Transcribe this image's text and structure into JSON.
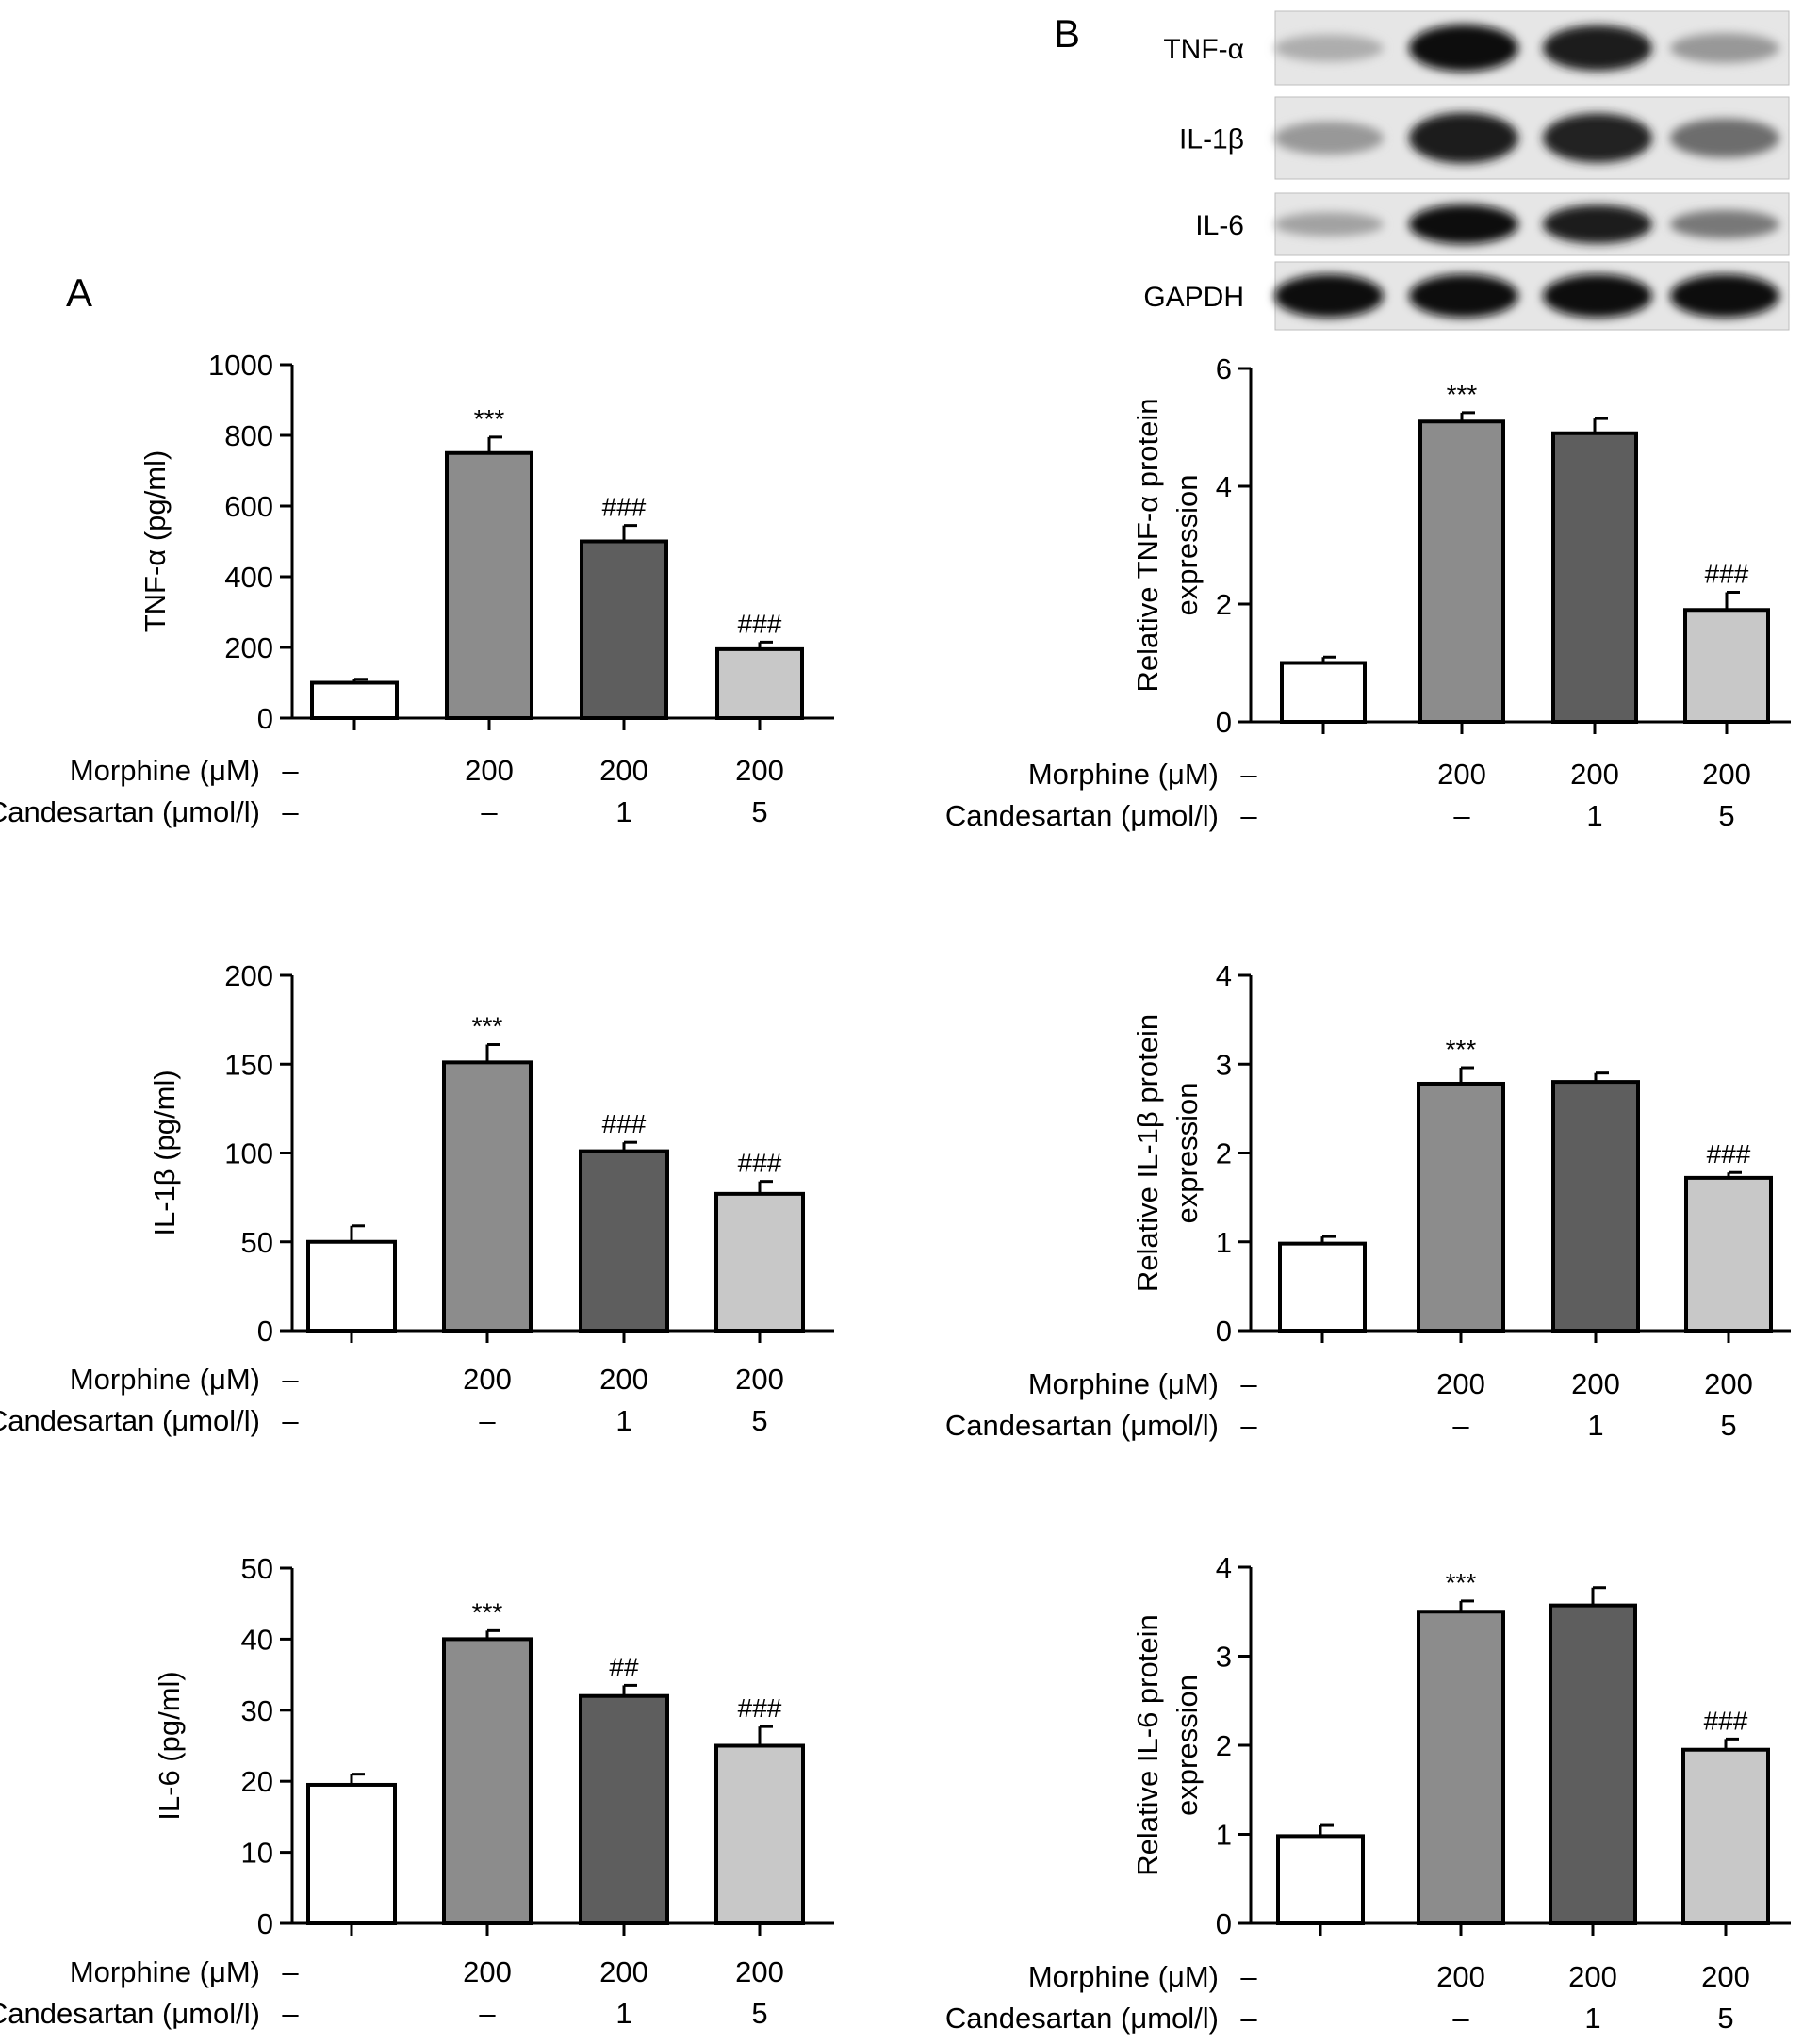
{
  "panel_labels": [
    "A",
    "B"
  ],
  "western_blot": {
    "rows": [
      "TNF-α",
      "IL-1β",
      "IL-6",
      "GAPDH"
    ],
    "lanes": 4,
    "band_darkness": [
      [
        0.25,
        1.0,
        0.95,
        0.35
      ],
      [
        0.35,
        0.95,
        0.9,
        0.55
      ],
      [
        0.3,
        1.0,
        0.95,
        0.5
      ],
      [
        1.0,
        1.0,
        1.0,
        1.0
      ]
    ]
  },
  "treatments": {
    "row1_label": "Morphine (μM)",
    "row1_values": [
      "–",
      "200",
      "200",
      "200"
    ],
    "row2_label": "Candesartan (μmol/l)",
    "row2_values": [
      "–",
      "–",
      "1",
      "5"
    ]
  },
  "colors": {
    "bar_fills": [
      "#ffffff",
      "#8c8c8c",
      "#5e5e5e",
      "#c8c8c8"
    ],
    "stroke": "#000000"
  },
  "chart_data": [
    {
      "type": "bar",
      "panel": "A",
      "ylabel": "TNF-α (pg/ml)",
      "ylim": [
        0,
        1000
      ],
      "yticks": [
        0,
        200,
        400,
        600,
        800,
        1000
      ],
      "values": [
        100,
        750,
        500,
        195
      ],
      "errors": [
        10,
        45,
        45,
        20
      ],
      "annotations": [
        "",
        "***",
        "###",
        "###"
      ]
    },
    {
      "type": "bar",
      "panel": "A",
      "ylabel": "IL-1β (pg/ml)",
      "ylim": [
        0,
        200
      ],
      "yticks": [
        0,
        50,
        100,
        150,
        200
      ],
      "values": [
        50,
        151,
        101,
        77
      ],
      "errors": [
        9,
        10,
        5,
        7
      ],
      "annotations": [
        "",
        "***",
        "###",
        "###"
      ]
    },
    {
      "type": "bar",
      "panel": "A",
      "ylabel": "IL-6 (pg/ml)",
      "ylim": [
        0,
        50
      ],
      "yticks": [
        0,
        10,
        20,
        30,
        40,
        50
      ],
      "values": [
        19.5,
        40,
        32,
        25
      ],
      "errors": [
        1.5,
        1.2,
        1.5,
        2.7
      ],
      "annotations": [
        "",
        "***",
        "##",
        "###"
      ]
    },
    {
      "type": "bar",
      "panel": "B",
      "ylabel": [
        "Relative TNF-α protein",
        "expression"
      ],
      "ylim": [
        0,
        6
      ],
      "yticks": [
        0,
        2,
        4,
        6
      ],
      "values": [
        1.0,
        5.1,
        4.9,
        1.9
      ],
      "errors": [
        0.1,
        0.15,
        0.25,
        0.3
      ],
      "annotations": [
        "",
        "***",
        "",
        "###"
      ]
    },
    {
      "type": "bar",
      "panel": "B",
      "ylabel": [
        "Relative IL-1β protein",
        "expression"
      ],
      "ylim": [
        0,
        4
      ],
      "yticks": [
        0,
        1,
        2,
        3,
        4
      ],
      "values": [
        0.98,
        2.78,
        2.8,
        1.72
      ],
      "errors": [
        0.08,
        0.18,
        0.1,
        0.06
      ],
      "annotations": [
        "",
        "***",
        "",
        "###"
      ]
    },
    {
      "type": "bar",
      "panel": "B",
      "ylabel": [
        "Relative IL-6 protein",
        "expression"
      ],
      "ylim": [
        0,
        4
      ],
      "yticks": [
        0,
        1,
        2,
        3,
        4
      ],
      "values": [
        0.98,
        3.5,
        3.57,
        1.95
      ],
      "errors": [
        0.12,
        0.12,
        0.2,
        0.12
      ],
      "annotations": [
        "",
        "***",
        "",
        "###"
      ]
    }
  ]
}
